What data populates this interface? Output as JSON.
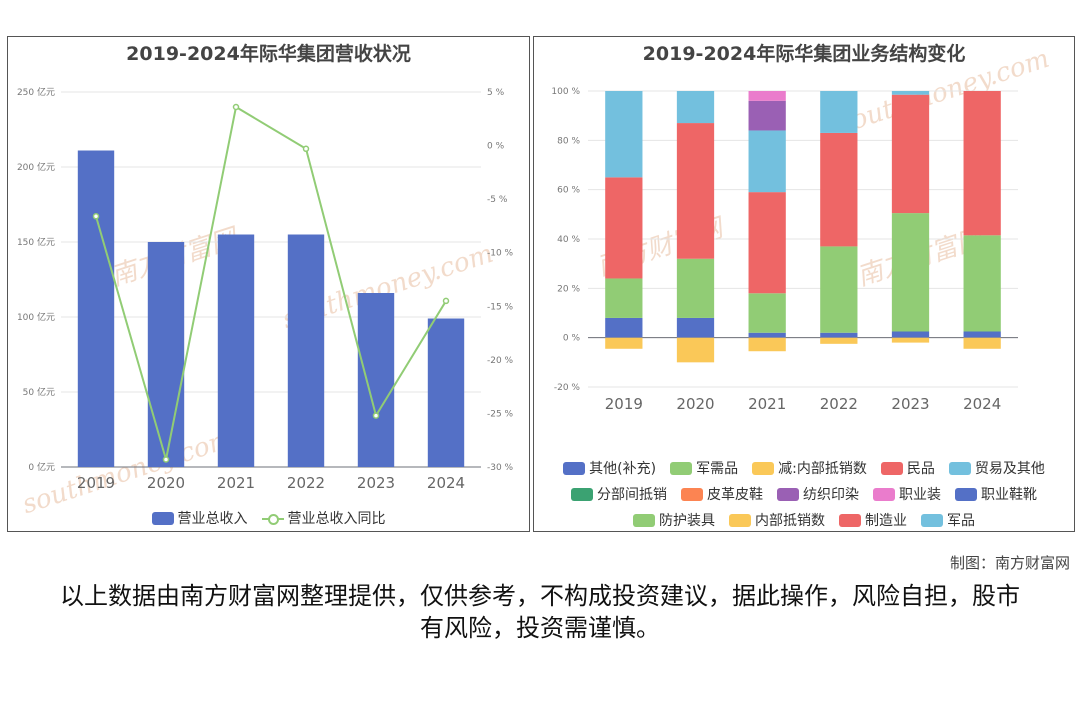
{
  "watermark": {
    "cn": "南方财富网",
    "en": "southmoney.com"
  },
  "credit": "制图：南方财富网",
  "disclaimer": "以上数据由南方财富网整理提供，仅供参考，不构成投资建议，据此操作，风险自担，股市有风险，投资需谨慎。",
  "chart_data": [
    {
      "type": "bar",
      "title": "2019-2024年际华集团营收状况",
      "categories": [
        "2019",
        "2020",
        "2021",
        "2022",
        "2023",
        "2024"
      ],
      "y_ticks": [
        "0 亿元",
        "50 亿元",
        "100 亿元",
        "150 亿元",
        "200 亿元",
        "250 亿元"
      ],
      "y2_ticks": [
        "-30 %",
        "-25 %",
        "-20 %",
        "-15 %",
        "-10 %",
        "-5 %",
        "0 %",
        "5 %"
      ],
      "ylim": [
        0,
        250
      ],
      "y2lim": [
        -30,
        5
      ],
      "series": [
        {
          "name": "营业总收入",
          "kind": "bar",
          "color": "#5470c6",
          "values": [
            211,
            150,
            155,
            155,
            116,
            99
          ]
        },
        {
          "name": "营业总收入同比",
          "kind": "line",
          "color": "#91cc75",
          "axis": "right",
          "values": [
            -6.6,
            -29.3,
            3.6,
            -0.3,
            -25.2,
            -14.5
          ]
        }
      ],
      "legend_position": "bottom",
      "grid": true
    },
    {
      "type": "bar",
      "stacked": true,
      "title": "2019-2024年际华集团业务结构变化",
      "categories": [
        "2019",
        "2020",
        "2021",
        "2022",
        "2023",
        "2024"
      ],
      "y_ticks": [
        "-20 %",
        "0 %",
        "20 %",
        "40 %",
        "60 %",
        "80 %",
        "100 %"
      ],
      "ylim": [
        -20,
        100
      ],
      "series": [
        {
          "name": "其他(补充)",
          "color": "#5470c6",
          "values": [
            8,
            8,
            2,
            2,
            2.5,
            2.5
          ]
        },
        {
          "name": "军需品",
          "color": "#91cc75",
          "values": [
            16,
            24,
            16,
            35,
            48,
            39
          ]
        },
        {
          "name": "减:内部抵销数",
          "color": "#fac858",
          "values": [
            -4.5,
            -10,
            -5.5,
            -2.5,
            -2,
            -4.5
          ]
        },
        {
          "name": "民品",
          "color": "#ee6666",
          "values": [
            41,
            55,
            41,
            46,
            48,
            58.5
          ]
        },
        {
          "name": "贸易及其他",
          "color": "#73c0de",
          "values": [
            35,
            13,
            25,
            17,
            1.5,
            0
          ]
        },
        {
          "name": "分部间抵销",
          "color": "#3ba272",
          "values": [
            0,
            0,
            0,
            0,
            0,
            0
          ]
        },
        {
          "name": "皮革皮鞋",
          "color": "#fc8452",
          "values": [
            0,
            0,
            0,
            0,
            0,
            0
          ]
        },
        {
          "name": "纺织印染",
          "color": "#9a60b4",
          "values": [
            0,
            0,
            12,
            0,
            0,
            0
          ]
        },
        {
          "name": "职业装",
          "color": "#ea7ccc",
          "values": [
            0,
            0,
            4,
            0,
            0,
            0
          ]
        },
        {
          "name": "职业鞋靴",
          "color": "#5470c6",
          "values": [
            0,
            0,
            0,
            0,
            0,
            0
          ]
        },
        {
          "name": "防护装具",
          "color": "#91cc75",
          "values": [
            0,
            0,
            0,
            0,
            0,
            0
          ]
        },
        {
          "name": "内部抵销数",
          "color": "#fac858",
          "values": [
            0,
            0,
            0,
            0,
            0,
            0
          ]
        },
        {
          "name": "制造业",
          "color": "#ee6666",
          "values": [
            0,
            0,
            0,
            0,
            0,
            0
          ]
        },
        {
          "name": "军品",
          "color": "#73c0de",
          "values": [
            0,
            0,
            0,
            0,
            0,
            0
          ]
        }
      ],
      "legend_position": "bottom",
      "grid": true
    }
  ]
}
